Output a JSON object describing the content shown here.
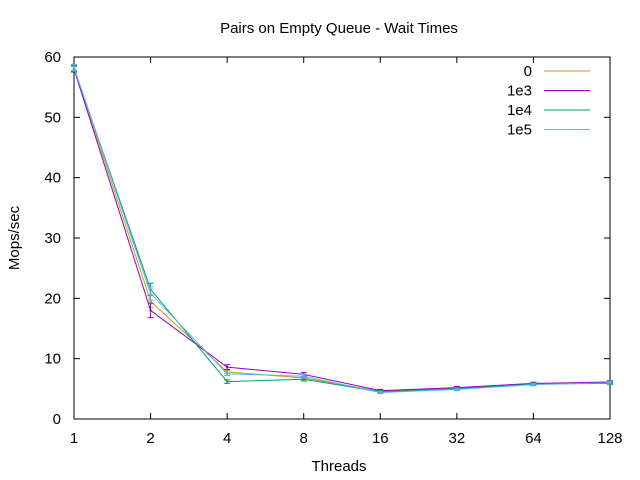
{
  "chart_data": {
    "type": "line",
    "title": "Pairs on Empty Queue - Wait Times",
    "xlabel": "Threads",
    "ylabel": "Mops/sec",
    "x_scale": "log2",
    "x": [
      1,
      2,
      4,
      8,
      16,
      32,
      64,
      128
    ],
    "x_tick_labels": [
      "1",
      "2",
      "4",
      "8",
      "16",
      "32",
      "64",
      "128"
    ],
    "xlim": [
      1,
      128
    ],
    "ylim": [
      0,
      60
    ],
    "y_ticks": [
      0,
      10,
      20,
      30,
      40,
      50,
      60
    ],
    "y_tick_labels": [
      "0",
      "10",
      "20",
      "30",
      "40",
      "50",
      "60"
    ],
    "grid": false,
    "legend_position": "top-right",
    "error_bars": true,
    "series": [
      {
        "name": "0",
        "color": "#c8a000",
        "values": [
          58.2,
          19.5,
          7.8,
          6.8,
          4.6,
          5.1,
          5.8,
          6.2
        ],
        "errors": [
          0.5,
          1.0,
          0.3,
          0.3,
          0.2,
          0.2,
          0.2,
          0.2
        ]
      },
      {
        "name": "1e3",
        "color": "#9400d3",
        "values": [
          58.0,
          18.0,
          8.6,
          7.4,
          4.7,
          5.2,
          5.9,
          6.1
        ],
        "errors": [
          0.5,
          1.2,
          0.4,
          0.3,
          0.2,
          0.2,
          0.2,
          0.2
        ]
      },
      {
        "name": "1e4",
        "color": "#009e73",
        "values": [
          58.1,
          21.5,
          6.2,
          6.6,
          4.5,
          5.0,
          5.8,
          5.9
        ],
        "errors": [
          0.5,
          1.0,
          0.3,
          0.3,
          0.2,
          0.2,
          0.2,
          0.2
        ]
      },
      {
        "name": "1e5",
        "color": "#56b4e9",
        "values": [
          58.3,
          20.8,
          7.5,
          7.1,
          4.4,
          4.9,
          5.7,
          6.0
        ],
        "errors": [
          0.5,
          1.1,
          0.3,
          0.3,
          0.2,
          0.2,
          0.2,
          0.2
        ]
      }
    ]
  }
}
